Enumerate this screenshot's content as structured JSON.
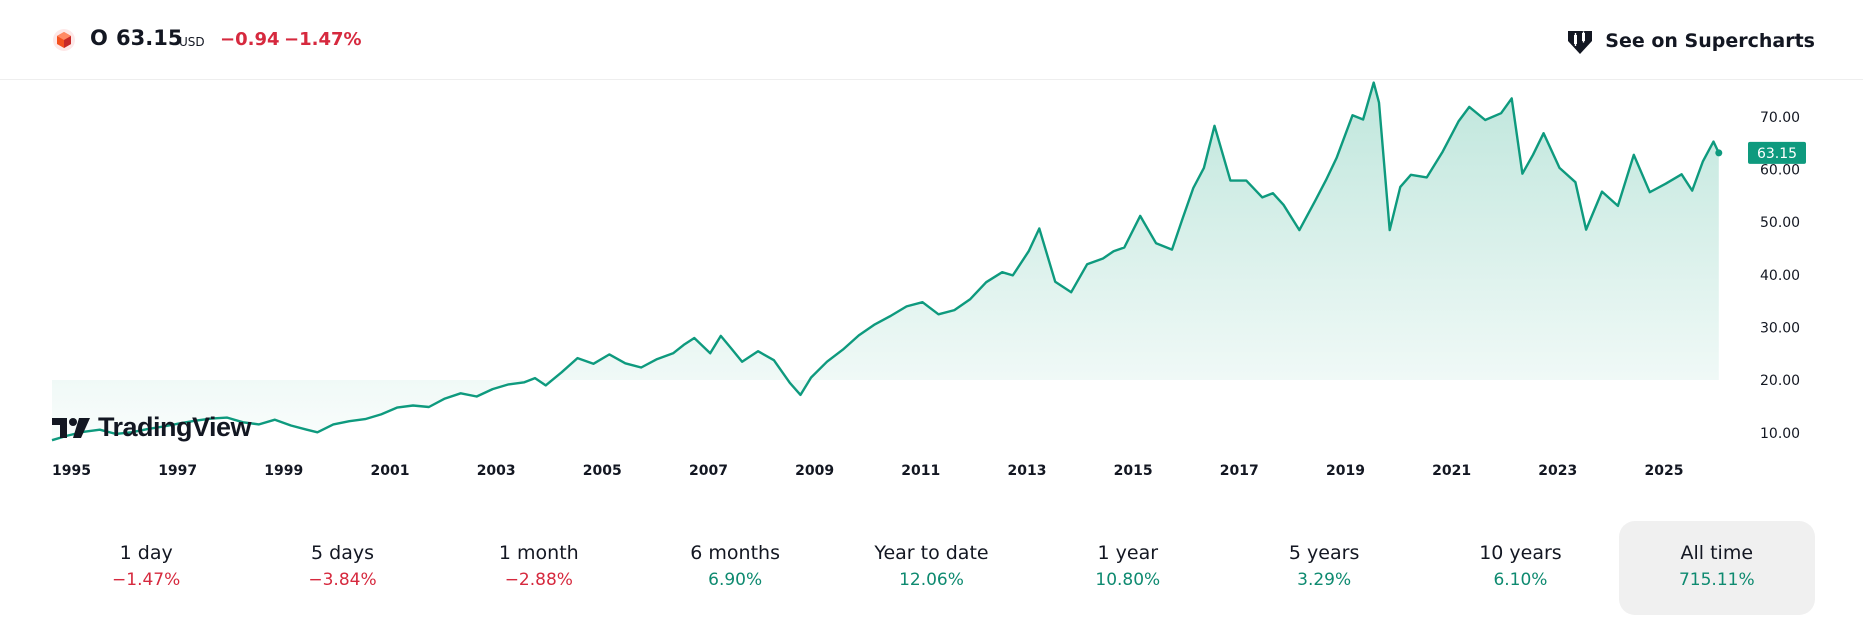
{
  "header": {
    "ticker": "O",
    "price": "63.15",
    "currency": "USD",
    "change_abs": "−0.94",
    "change_pct": "−1.47%",
    "supercharts_label": "See on Supercharts"
  },
  "watermark": {
    "label": "TradingView"
  },
  "colors": {
    "line": "#0e9a7e",
    "area_top": "#bfe6dc",
    "negative": "#d6293e",
    "positive": "#0e8a70"
  },
  "periods": [
    {
      "label": "1 day",
      "value": "−1.47%",
      "sign": "neg"
    },
    {
      "label": "5 days",
      "value": "−3.84%",
      "sign": "neg"
    },
    {
      "label": "1 month",
      "value": "−2.88%",
      "sign": "neg"
    },
    {
      "label": "6 months",
      "value": "6.90%",
      "sign": "pos"
    },
    {
      "label": "Year to date",
      "value": "12.06%",
      "sign": "pos"
    },
    {
      "label": "1 year",
      "value": "10.80%",
      "sign": "pos"
    },
    {
      "label": "5 years",
      "value": "3.29%",
      "sign": "pos"
    },
    {
      "label": "10 years",
      "value": "6.10%",
      "sign": "pos"
    },
    {
      "label": "All time",
      "value": "715.11%",
      "sign": "pos",
      "active": true
    }
  ],
  "chart_data": {
    "type": "area",
    "ylim": [
      7.5,
      77
    ],
    "xlim": [
      1995.0,
      2026.8
    ],
    "y_ticks": [
      {
        "value": 10,
        "label": "10.00"
      },
      {
        "value": 20,
        "label": "20.00"
      },
      {
        "value": 30,
        "label": "30.00"
      },
      {
        "value": 40,
        "label": "40.00"
      },
      {
        "value": 50,
        "label": "50.00"
      },
      {
        "value": 60,
        "label": "60.00"
      },
      {
        "value": 70,
        "label": "70.00"
      }
    ],
    "x_ticks": [
      {
        "value": 1995.0,
        "label": "1995"
      },
      {
        "value": 1997.0,
        "label": "1997"
      },
      {
        "value": 1999.0,
        "label": "1999"
      },
      {
        "value": 2001.0,
        "label": "2001"
      },
      {
        "value": 2003.0,
        "label": "2003"
      },
      {
        "value": 2005.0,
        "label": "2005"
      },
      {
        "value": 2007.0,
        "label": "2007"
      },
      {
        "value": 2009.0,
        "label": "2009"
      },
      {
        "value": 2011.0,
        "label": "2011"
      },
      {
        "value": 2013.0,
        "label": "2013"
      },
      {
        "value": 2015.0,
        "label": "2015"
      },
      {
        "value": 2017.0,
        "label": "2017"
      },
      {
        "value": 2019.0,
        "label": "2019"
      },
      {
        "value": 2021.0,
        "label": "2021"
      },
      {
        "value": 2023.0,
        "label": "2023"
      },
      {
        "value": 2025.0,
        "label": "2025"
      }
    ],
    "last_price": {
      "value": 63.15,
      "label": "63.15"
    },
    "x": [
      1995.0,
      1995.3,
      1995.6,
      1995.9,
      1996.2,
      1996.5,
      1996.8,
      1997.1,
      1997.4,
      1997.7,
      1998.0,
      1998.3,
      1998.6,
      1998.9,
      1999.2,
      1999.5,
      1999.8,
      2000.0,
      2000.3,
      2000.6,
      2000.9,
      2001.2,
      2001.5,
      2001.8,
      2002.1,
      2002.4,
      2002.7,
      2003.0,
      2003.3,
      2003.6,
      2003.9,
      2004.1,
      2004.3,
      2004.6,
      2004.9,
      2005.2,
      2005.5,
      2005.8,
      2006.1,
      2006.4,
      2006.7,
      2006.9,
      2007.1,
      2007.4,
      2007.6,
      2007.8,
      2008.0,
      2008.3,
      2008.6,
      2008.9,
      2009.1,
      2009.3,
      2009.6,
      2009.9,
      2010.2,
      2010.5,
      2010.8,
      2011.1,
      2011.4,
      2011.7,
      2012.0,
      2012.3,
      2012.6,
      2012.9,
      2013.1,
      2013.4,
      2013.6,
      2013.9,
      2014.2,
      2014.5,
      2014.8,
      2015.0,
      2015.2,
      2015.5,
      2015.8,
      2016.1,
      2016.3,
      2016.5,
      2016.7,
      2016.9,
      2017.2,
      2017.5,
      2017.8,
      2018.0,
      2018.2,
      2018.5,
      2018.8,
      2019.0,
      2019.2,
      2019.5,
      2019.7,
      2019.9,
      2020.0,
      2020.2,
      2020.4,
      2020.6,
      2020.9,
      2021.2,
      2021.5,
      2021.7,
      2022.0,
      2022.3,
      2022.5,
      2022.7,
      2022.9,
      2023.1,
      2023.4,
      2023.7,
      2023.9,
      2024.2,
      2024.5,
      2024.8,
      2025.1,
      2025.4,
      2025.7,
      2025.9,
      2026.1,
      2026.3,
      2026.4
    ],
    "y": [
      8.6,
      9.5,
      10.2,
      10.6,
      9.8,
      10.1,
      10.7,
      11.2,
      11.8,
      12.3,
      12.7,
      12.9,
      12.0,
      11.6,
      12.5,
      11.4,
      10.6,
      10.1,
      11.6,
      12.2,
      12.6,
      13.5,
      14.8,
      15.2,
      14.9,
      16.5,
      17.5,
      16.9,
      18.3,
      19.2,
      19.6,
      20.4,
      19.0,
      21.5,
      24.2,
      23.1,
      24.9,
      23.2,
      22.4,
      24.0,
      25.1,
      26.7,
      28.0,
      25.1,
      28.4,
      26.0,
      23.5,
      25.5,
      23.8,
      19.5,
      17.2,
      20.5,
      23.5,
      25.8,
      28.5,
      30.6,
      32.2,
      34.0,
      34.8,
      32.5,
      33.3,
      35.4,
      38.6,
      40.5,
      39.9,
      44.5,
      48.8,
      38.7,
      36.7,
      42.0,
      43.1,
      44.5,
      45.2,
      51.2,
      46.0,
      44.8,
      50.7,
      56.5,
      60.3,
      68.3,
      57.9,
      57.9,
      54.7,
      55.5,
      53.3,
      48.5,
      54.1,
      58.0,
      62.2,
      70.3,
      69.5,
      76.5,
      72.7,
      48.5,
      56.7,
      59.0,
      58.5,
      63.4,
      69.2,
      71.9,
      69.4,
      70.7,
      73.5,
      59.2,
      62.8,
      66.9,
      60.3,
      57.6,
      48.6,
      55.8,
      53.1,
      62.8,
      55.7,
      57.3,
      59.1,
      56.0,
      61.5,
      65.3,
      63.15
    ]
  }
}
